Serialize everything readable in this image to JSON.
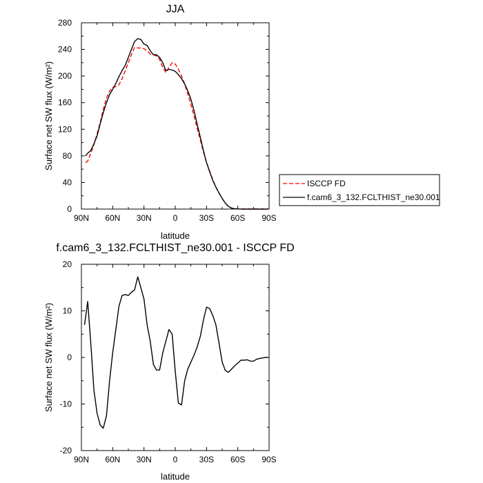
{
  "chart_data": [
    {
      "type": "line",
      "title": "JJA",
      "xlabel": "latitude",
      "ylabel": "Surface net SW flux (W/m²)",
      "xlim": [
        90,
        -90
      ],
      "ylim": [
        0,
        280
      ],
      "x_ticks": [
        90,
        60,
        30,
        0,
        -30,
        -60,
        -90
      ],
      "x_tick_labels": [
        "90N",
        "60N",
        "30N",
        "0",
        "30S",
        "60S",
        "90S"
      ],
      "y_ticks": [
        0,
        40,
        80,
        120,
        160,
        200,
        240,
        280
      ],
      "y_tick_labels": [
        "0",
        "40",
        "80",
        "120",
        "160",
        "200",
        "240",
        "280"
      ],
      "legend_position": "right-outside-bottom",
      "series": [
        {
          "name": "ISCCP FD",
          "color": "#ff0000",
          "dash": "dashed",
          "x": [
            86,
            84,
            81,
            78,
            75,
            72,
            69,
            66,
            63,
            60,
            57,
            54,
            51,
            48,
            45,
            42,
            39,
            36,
            33,
            30,
            27,
            24,
            21,
            18,
            15,
            12,
            9,
            6,
            3,
            0,
            -3,
            -6,
            -9,
            -12,
            -15,
            -18,
            -21,
            -24,
            -27,
            -30,
            -33,
            -36,
            -39,
            -42,
            -45,
            -48,
            -51,
            -54,
            -57,
            -60,
            -63,
            -66,
            -69,
            -72,
            -75,
            -78,
            -81,
            -84,
            -87,
            -89
          ],
          "values": [
            70,
            72,
            84,
            97,
            113,
            130,
            150,
            167,
            177,
            183,
            184,
            187,
            196,
            208,
            220,
            232,
            243,
            242,
            242,
            241,
            238,
            233,
            232,
            230,
            225,
            213,
            205,
            213,
            220,
            218,
            210,
            200,
            188,
            173,
            157,
            140,
            122,
            104,
            86,
            70,
            57,
            44,
            33,
            24,
            16,
            9,
            4,
            1.5,
            0.5,
            0.2,
            0.1,
            0,
            0,
            0,
            0,
            0,
            0,
            0,
            0,
            0
          ]
        },
        {
          "name": "f.cam6_3_132.FCLTHIST_ne30.001",
          "color": "#000000",
          "dash": "solid",
          "x": [
            86,
            84,
            81,
            78,
            75,
            72,
            69,
            66,
            63,
            60,
            57,
            54,
            51,
            48,
            45,
            42,
            39,
            36,
            33,
            30,
            27,
            24,
            21,
            18,
            15,
            12,
            9,
            6,
            3,
            0,
            -3,
            -6,
            -9,
            -12,
            -15,
            -18,
            -21,
            -24,
            -27,
            -30,
            -33,
            -36,
            -39,
            -42,
            -45,
            -48,
            -51,
            -54,
            -57,
            -60,
            -63,
            -66,
            -69,
            -72,
            -75,
            -78,
            -81,
            -84,
            -87,
            -89
          ],
          "values": [
            80,
            84,
            88,
            98,
            110,
            128,
            145,
            160,
            172,
            180,
            189,
            199,
            208,
            216,
            228,
            240,
            252,
            256,
            255,
            248,
            246,
            238,
            232,
            232,
            228,
            220,
            208,
            210,
            209,
            207,
            202,
            196,
            188,
            178,
            165,
            148,
            128,
            108,
            88,
            70,
            56,
            43,
            33,
            24,
            16,
            9,
            4,
            1.5,
            0.5,
            0.2,
            0.1,
            0,
            0,
            0,
            0,
            0,
            0,
            0,
            0,
            0
          ]
        }
      ]
    },
    {
      "type": "line",
      "title": "f.cam6_3_132.FCLTHIST_ne30.001 - ISCCP FD",
      "xlabel": "latitude",
      "ylabel": "Surface net SW flux (W/m²)",
      "xlim": [
        90,
        -90
      ],
      "ylim": [
        -20,
        20
      ],
      "x_ticks": [
        90,
        60,
        30,
        0,
        -30,
        -60,
        -90
      ],
      "x_tick_labels": [
        "90N",
        "60N",
        "30N",
        "0",
        "30S",
        "60S",
        "90S"
      ],
      "y_ticks": [
        -20,
        -10,
        0,
        10,
        20
      ],
      "y_tick_labels": [
        "-20",
        "-10",
        "0",
        "10",
        "20"
      ],
      "series": [
        {
          "color": "#000000",
          "dash": "solid",
          "x": [
            87,
            84,
            81,
            78,
            75,
            72,
            69,
            66,
            63,
            60,
            57,
            54,
            51,
            48,
            45,
            42,
            39,
            36,
            33,
            30,
            27,
            24,
            21,
            18,
            15,
            12,
            9,
            6,
            3,
            0,
            -3,
            -6,
            -9,
            -12,
            -15,
            -18,
            -21,
            -24,
            -27,
            -30,
            -33,
            -36,
            -39,
            -42,
            -45,
            -48,
            -51,
            -54,
            -57,
            -60,
            -63,
            -66,
            -69,
            -72,
            -75,
            -78,
            -81,
            -84,
            -87,
            -89
          ],
          "values": [
            7,
            12,
            3,
            -7,
            -12,
            -14.5,
            -15.2,
            -12.5,
            -5,
            1,
            6,
            11,
            13.3,
            13.5,
            13.3,
            14,
            14.5,
            17.3,
            15,
            12.5,
            7,
            3.5,
            -1.5,
            -2.7,
            -2.7,
            1,
            3.5,
            6,
            5,
            -3,
            -9.8,
            -10.2,
            -5,
            -2.5,
            -1,
            0.5,
            2.2,
            4.5,
            8,
            10.8,
            10.5,
            9,
            7,
            3,
            -1,
            -2.8,
            -3.2,
            -2.5,
            -1.8,
            -1.2,
            -0.6,
            -0.6,
            -0.5,
            -0.8,
            -0.8,
            -0.4,
            -0.2,
            -0.1,
            0,
            0
          ]
        }
      ]
    }
  ]
}
